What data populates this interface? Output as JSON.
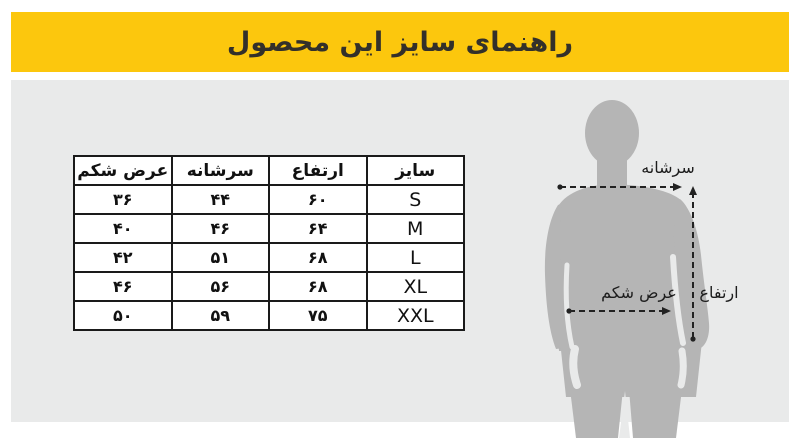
{
  "title": "راهنمای سایز این محصول",
  "colors": {
    "banner_bg": "#fcc70d",
    "banner_text": "#33302a",
    "panel_bg": "#e9eaea",
    "silhouette": "#b5b5b5",
    "table_border": "#1a1a1a",
    "line": "#222222"
  },
  "table": {
    "headers": [
      "سایز",
      "ارتفاع",
      "سرشانه",
      "عرض شکم"
    ],
    "rows": [
      {
        "size": "S",
        "height": "۶۰",
        "shoulder": "۴۴",
        "belly": "۳۶"
      },
      {
        "size": "M",
        "height": "۶۴",
        "shoulder": "۴۶",
        "belly": "۴۰"
      },
      {
        "size": "L",
        "height": "۶۸",
        "shoulder": "۵۱",
        "belly": "۴۲"
      },
      {
        "size": "XL",
        "height": "۶۸",
        "shoulder": "۵۶",
        "belly": "۴۶"
      },
      {
        "size": "XXL",
        "height": "۷۵",
        "shoulder": "۵۹",
        "belly": "۵۰"
      }
    ]
  },
  "figure": {
    "labels": {
      "shoulder": "سرشانه",
      "belly": "عرض شکم",
      "height": "ارتفاع"
    }
  }
}
